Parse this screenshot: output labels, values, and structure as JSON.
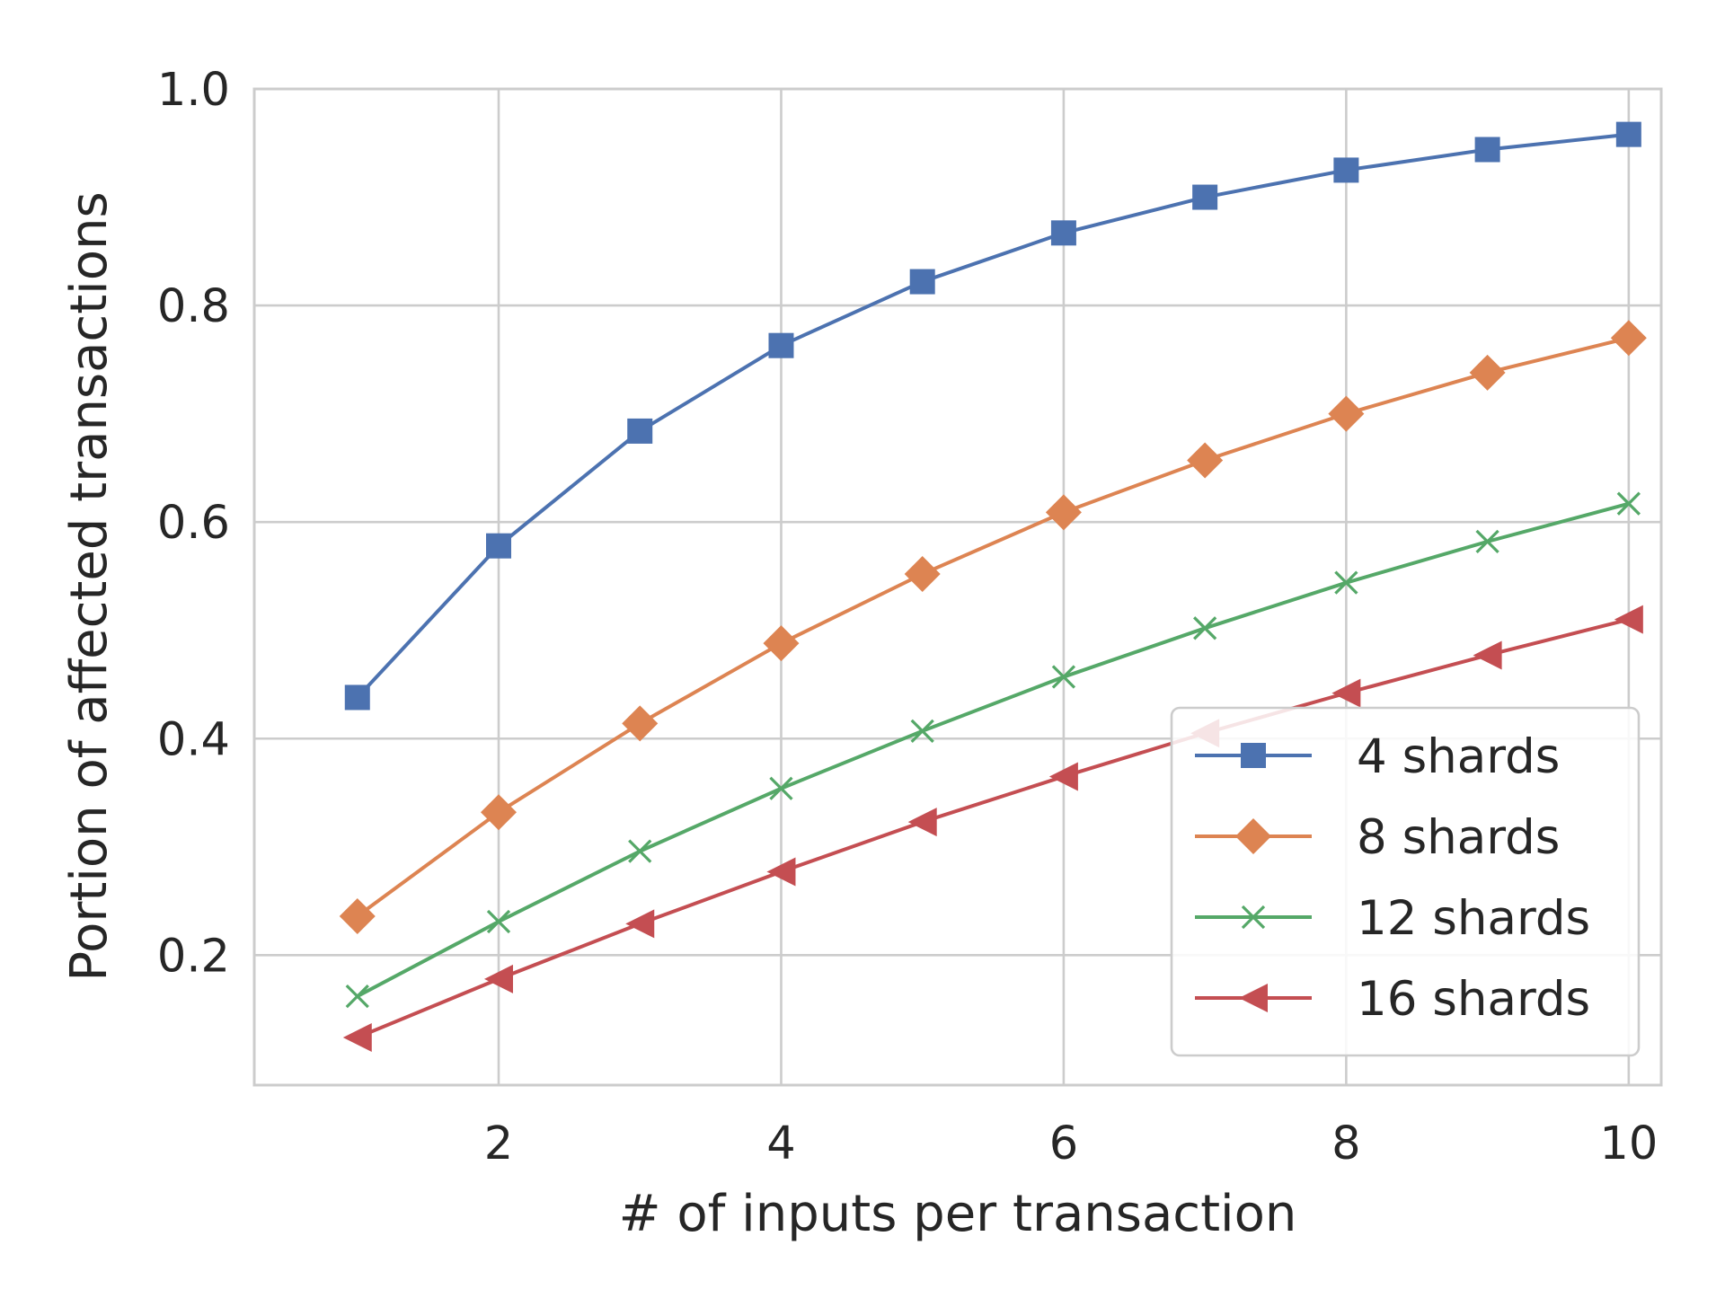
{
  "chart_data": {
    "type": "line",
    "xlabel": "# of inputs per transaction",
    "ylabel": "Portion of affected transactions",
    "xlim": [
      0.27,
      10.23
    ],
    "ylim": [
      0.08,
      1.0
    ],
    "x_ticks": [
      2,
      4,
      6,
      8,
      10
    ],
    "y_ticks": [
      0.2,
      0.4,
      0.6,
      0.8,
      1.0
    ],
    "x_tick_labels": [
      "2",
      "4",
      "6",
      "8",
      "10"
    ],
    "y_tick_labels": [
      "0.2",
      "0.4",
      "0.6",
      "0.8",
      "1.0"
    ],
    "grid": true,
    "legend_position": "lower-right",
    "x": [
      1,
      2,
      3,
      4,
      5,
      6,
      7,
      8,
      9,
      10
    ],
    "series": [
      {
        "name": "4 shards",
        "color": "#4c72b0",
        "marker": "square",
        "values": [
          0.438,
          0.578,
          0.684,
          0.763,
          0.822,
          0.867,
          0.9,
          0.925,
          0.944,
          0.958
        ]
      },
      {
        "name": "8 shards",
        "color": "#dd8452",
        "marker": "diamond",
        "values": [
          0.236,
          0.332,
          0.414,
          0.488,
          0.552,
          0.609,
          0.657,
          0.7,
          0.738,
          0.77
        ]
      },
      {
        "name": "12 shards",
        "color": "#55a868",
        "marker": "x",
        "values": [
          0.162,
          0.231,
          0.296,
          0.354,
          0.407,
          0.457,
          0.502,
          0.544,
          0.582,
          0.617
        ]
      },
      {
        "name": "16 shards",
        "color": "#c44e52",
        "marker": "triangle-left",
        "values": [
          0.124,
          0.178,
          0.229,
          0.277,
          0.323,
          0.365,
          0.405,
          0.442,
          0.477,
          0.51
        ]
      }
    ]
  }
}
